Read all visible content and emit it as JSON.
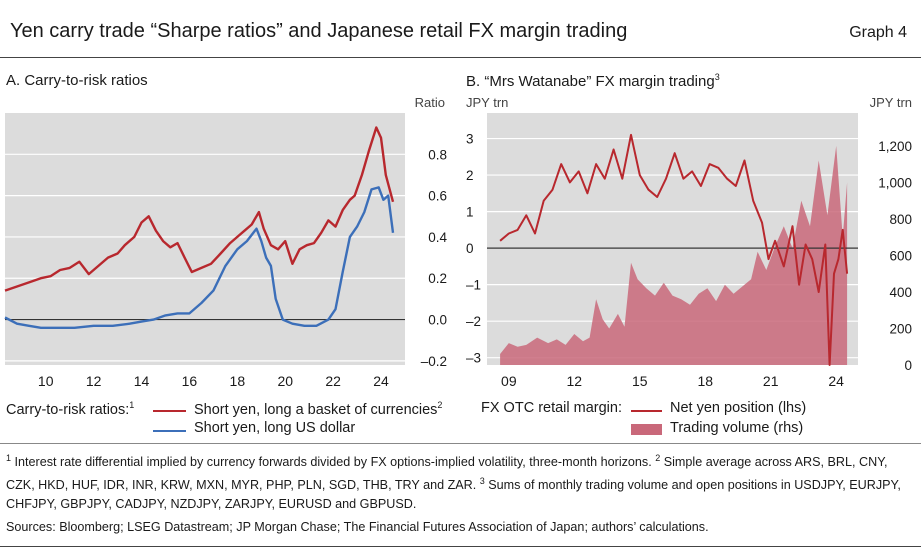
{
  "figure": {
    "title": "Yen carry trade “Sharpe ratios” and Japanese retail FX margin trading",
    "graph_label": "Graph 4"
  },
  "chart_data": [
    {
      "type": "line",
      "panel_title": "A. Carry-to-risk ratios",
      "yaxis_title": "Ratio",
      "ylim": [
        -0.22,
        1.0
      ],
      "yticks": [
        -0.2,
        0.0,
        0.2,
        0.4,
        0.6,
        0.8
      ],
      "ytick_labels": [
        "–0.2",
        "0.0",
        "0.2",
        "0.4",
        "0.6",
        "0.8"
      ],
      "xlim": [
        2008.3,
        2025.0
      ],
      "xticks": [
        2010,
        2012,
        2014,
        2016,
        2018,
        2020,
        2022,
        2024
      ],
      "xtick_labels": [
        "10",
        "12",
        "14",
        "16",
        "18",
        "20",
        "22",
        "24"
      ],
      "legend_prefix": "Carry-to-risk ratios:",
      "legend_prefix_note": "1",
      "series": [
        {
          "name": "Short yen, long a basket of currencies",
          "note": "2",
          "color": "#b8282e",
          "points": [
            [
              2008.3,
              0.14
            ],
            [
              2008.8,
              0.16
            ],
            [
              2009.3,
              0.18
            ],
            [
              2009.8,
              0.2
            ],
            [
              2010.2,
              0.21
            ],
            [
              2010.6,
              0.24
            ],
            [
              2011.0,
              0.25
            ],
            [
              2011.4,
              0.28
            ],
            [
              2011.8,
              0.22
            ],
            [
              2012.2,
              0.26
            ],
            [
              2012.6,
              0.3
            ],
            [
              2013.0,
              0.32
            ],
            [
              2013.3,
              0.36
            ],
            [
              2013.7,
              0.4
            ],
            [
              2014.0,
              0.47
            ],
            [
              2014.3,
              0.5
            ],
            [
              2014.6,
              0.43
            ],
            [
              2014.9,
              0.38
            ],
            [
              2015.2,
              0.35
            ],
            [
              2015.5,
              0.37
            ],
            [
              2015.8,
              0.3
            ],
            [
              2016.1,
              0.23
            ],
            [
              2016.5,
              0.25
            ],
            [
              2016.9,
              0.27
            ],
            [
              2017.3,
              0.32
            ],
            [
              2017.7,
              0.37
            ],
            [
              2018.0,
              0.4
            ],
            [
              2018.3,
              0.43
            ],
            [
              2018.6,
              0.46
            ],
            [
              2018.9,
              0.52
            ],
            [
              2019.1,
              0.44
            ],
            [
              2019.4,
              0.36
            ],
            [
              2019.7,
              0.34
            ],
            [
              2020.0,
              0.38
            ],
            [
              2020.3,
              0.27
            ],
            [
              2020.6,
              0.34
            ],
            [
              2020.9,
              0.36
            ],
            [
              2021.2,
              0.37
            ],
            [
              2021.5,
              0.42
            ],
            [
              2021.8,
              0.48
            ],
            [
              2022.1,
              0.45
            ],
            [
              2022.4,
              0.53
            ],
            [
              2022.7,
              0.58
            ],
            [
              2022.9,
              0.6
            ],
            [
              2023.2,
              0.7
            ],
            [
              2023.5,
              0.82
            ],
            [
              2023.8,
              0.93
            ],
            [
              2024.0,
              0.88
            ],
            [
              2024.2,
              0.7
            ],
            [
              2024.5,
              0.57
            ]
          ]
        },
        {
          "name": "Short yen, long US dollar",
          "color": "#3c6fb9",
          "points": [
            [
              2008.3,
              0.01
            ],
            [
              2008.8,
              -0.02
            ],
            [
              2009.3,
              -0.03
            ],
            [
              2009.8,
              -0.04
            ],
            [
              2010.5,
              -0.04
            ],
            [
              2011.2,
              -0.04
            ],
            [
              2012.0,
              -0.03
            ],
            [
              2012.8,
              -0.03
            ],
            [
              2013.5,
              -0.02
            ],
            [
              2014.0,
              -0.01
            ],
            [
              2014.5,
              -0.0
            ],
            [
              2015.0,
              0.02
            ],
            [
              2015.5,
              0.03
            ],
            [
              2016.0,
              0.03
            ],
            [
              2016.5,
              0.08
            ],
            [
              2017.0,
              0.14
            ],
            [
              2017.5,
              0.26
            ],
            [
              2018.0,
              0.34
            ],
            [
              2018.4,
              0.38
            ],
            [
              2018.8,
              0.44
            ],
            [
              2019.0,
              0.38
            ],
            [
              2019.2,
              0.3
            ],
            [
              2019.4,
              0.26
            ],
            [
              2019.6,
              0.1
            ],
            [
              2019.9,
              0.0
            ],
            [
              2020.3,
              -0.02
            ],
            [
              2020.8,
              -0.03
            ],
            [
              2021.3,
              -0.03
            ],
            [
              2021.8,
              0.0
            ],
            [
              2022.1,
              0.05
            ],
            [
              2022.4,
              0.23
            ],
            [
              2022.7,
              0.4
            ],
            [
              2023.0,
              0.45
            ],
            [
              2023.3,
              0.52
            ],
            [
              2023.6,
              0.63
            ],
            [
              2023.9,
              0.64
            ],
            [
              2024.1,
              0.58
            ],
            [
              2024.3,
              0.6
            ],
            [
              2024.5,
              0.42
            ]
          ]
        }
      ]
    },
    {
      "type": "line+area",
      "panel_title": "B. “Mrs Watanabe” FX margin trading",
      "panel_title_note": "3",
      "yaxis_left_title": "JPY trn",
      "yaxis_right_title": "JPY trn",
      "ylim_left": [
        -3.2,
        3.7
      ],
      "yticks_left": [
        -3,
        -2,
        -1,
        0,
        1,
        2,
        3
      ],
      "ytick_labels_left": [
        "–3",
        "–2",
        "–1",
        "0",
        "1",
        "2",
        "3"
      ],
      "ylim_right": [
        0,
        1380
      ],
      "yticks_right": [
        0,
        200,
        400,
        600,
        800,
        1000,
        1200
      ],
      "ytick_labels_right": [
        "0",
        "200",
        "400",
        "600",
        "800",
        "1,000",
        "1,200"
      ],
      "xlim": [
        2008.0,
        2025.0
      ],
      "xticks": [
        2009,
        2012,
        2015,
        2018,
        2021,
        2024
      ],
      "xtick_labels": [
        "09",
        "12",
        "15",
        "18",
        "21",
        "24"
      ],
      "legend_prefix": "FX OTC retail margin:",
      "series": [
        {
          "name": "Net yen position (lhs)",
          "kind": "line",
          "axis": "left",
          "color": "#b8282e",
          "points": [
            [
              2008.6,
              0.2
            ],
            [
              2009.0,
              0.4
            ],
            [
              2009.4,
              0.5
            ],
            [
              2009.8,
              0.9
            ],
            [
              2010.2,
              0.4
            ],
            [
              2010.6,
              1.3
            ],
            [
              2011.0,
              1.6
            ],
            [
              2011.4,
              2.3
            ],
            [
              2011.8,
              1.8
            ],
            [
              2012.2,
              2.1
            ],
            [
              2012.6,
              1.5
            ],
            [
              2013.0,
              2.3
            ],
            [
              2013.4,
              1.9
            ],
            [
              2013.8,
              2.7
            ],
            [
              2014.2,
              1.9
            ],
            [
              2014.6,
              3.1
            ],
            [
              2015.0,
              2.0
            ],
            [
              2015.4,
              1.6
            ],
            [
              2015.8,
              1.4
            ],
            [
              2016.2,
              1.9
            ],
            [
              2016.6,
              2.6
            ],
            [
              2017.0,
              1.9
            ],
            [
              2017.4,
              2.1
            ],
            [
              2017.8,
              1.7
            ],
            [
              2018.2,
              2.3
            ],
            [
              2018.6,
              2.2
            ],
            [
              2019.0,
              1.9
            ],
            [
              2019.4,
              1.7
            ],
            [
              2019.8,
              2.4
            ],
            [
              2020.2,
              1.3
            ],
            [
              2020.6,
              0.7
            ],
            [
              2020.9,
              -0.3
            ],
            [
              2021.2,
              0.2
            ],
            [
              2021.6,
              -0.5
            ],
            [
              2022.0,
              0.6
            ],
            [
              2022.3,
              -1.0
            ],
            [
              2022.6,
              0.1
            ],
            [
              2022.9,
              -0.3
            ],
            [
              2023.2,
              -1.2
            ],
            [
              2023.5,
              0.1
            ],
            [
              2023.7,
              -3.4
            ],
            [
              2023.9,
              -0.7
            ],
            [
              2024.1,
              -0.3
            ],
            [
              2024.3,
              0.5
            ],
            [
              2024.5,
              -0.7
            ]
          ]
        },
        {
          "name": "Trading volume (rhs)",
          "kind": "area",
          "axis": "right",
          "color": "#c9687a",
          "points": [
            [
              2008.6,
              60
            ],
            [
              2009.0,
              120
            ],
            [
              2009.4,
              100
            ],
            [
              2009.8,
              110
            ],
            [
              2010.3,
              150
            ],
            [
              2010.8,
              120
            ],
            [
              2011.2,
              140
            ],
            [
              2011.6,
              110
            ],
            [
              2012.0,
              170
            ],
            [
              2012.4,
              130
            ],
            [
              2012.7,
              150
            ],
            [
              2013.0,
              360
            ],
            [
              2013.3,
              250
            ],
            [
              2013.6,
              200
            ],
            [
              2014.0,
              280
            ],
            [
              2014.3,
              210
            ],
            [
              2014.6,
              560
            ],
            [
              2014.9,
              470
            ],
            [
              2015.3,
              420
            ],
            [
              2015.7,
              380
            ],
            [
              2016.1,
              450
            ],
            [
              2016.5,
              380
            ],
            [
              2016.9,
              360
            ],
            [
              2017.3,
              330
            ],
            [
              2017.7,
              390
            ],
            [
              2018.1,
              420
            ],
            [
              2018.5,
              350
            ],
            [
              2018.9,
              440
            ],
            [
              2019.3,
              390
            ],
            [
              2019.7,
              430
            ],
            [
              2020.1,
              470
            ],
            [
              2020.4,
              620
            ],
            [
              2020.8,
              520
            ],
            [
              2021.2,
              650
            ],
            [
              2021.6,
              760
            ],
            [
              2022.0,
              640
            ],
            [
              2022.4,
              900
            ],
            [
              2022.8,
              760
            ],
            [
              2023.2,
              1120
            ],
            [
              2023.6,
              820
            ],
            [
              2024.0,
              1200
            ],
            [
              2024.3,
              700
            ],
            [
              2024.5,
              1000
            ]
          ]
        }
      ]
    }
  ],
  "footnotes": {
    "fn1_num": "1",
    "fn1_text": "Interest rate differential implied by currency forwards divided by FX options-implied volatility, three-month horizons.",
    "fn2_num": "2",
    "fn2_text": "Simple average across ARS, BRL, CNY, CZK, HKD, HUF, IDR, INR, KRW, MXN, MYR, PHP, PLN, SGD, THB, TRY and ZAR.",
    "fn3_num": "3",
    "fn3_text": "Sums of monthly trading volume and open positions in USDJPY, EURJPY, CHFJPY, GBPJPY, CADJPY, NZDJPY, ZARJPY, EURUSD and GBPUSD.",
    "sources": "Sources: Bloomberg; LSEG Datastream; JP Morgan Chase; The Financial Futures Association of Japan; authors’ calculations."
  }
}
